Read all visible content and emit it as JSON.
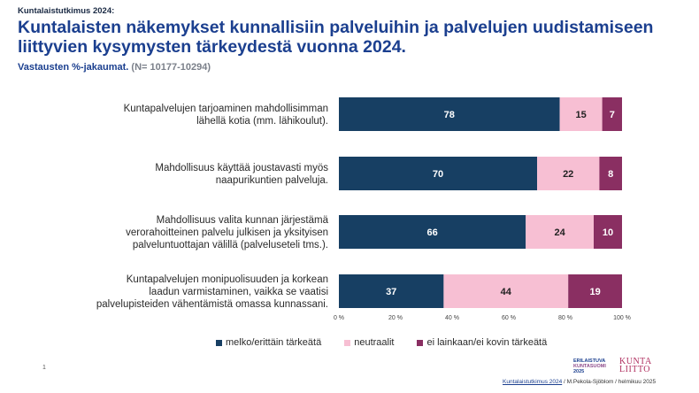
{
  "header": {
    "kicker": "Kuntalaistutkimus 2024:",
    "title": "Kuntalaisten näkemykset kunnallisiin palveluihin ja palvelujen uudistamiseen liittyvien kysymysten tärkeydestä vuonna 2024.",
    "subtitle": "Vastausten %-jakaumat.",
    "subtitle_n": "(N= 10177-10294)"
  },
  "colors": {
    "important": "#173f63",
    "neutral": "#f7bfd3",
    "not_important": "#8a2f62",
    "title": "#1b3f8f"
  },
  "chart_data": {
    "type": "bar",
    "orientation": "horizontal",
    "stacked": true,
    "categories": [
      [
        "Kuntapalvelujen tarjoaminen mahdollisimman",
        "lähellä kotia (mm. lähikoulut)."
      ],
      [
        "Mahdollisuus käyttää joustavasti myös",
        "naapurikuntien palveluja."
      ],
      [
        "Mahdollisuus valita kunnan järjestämä",
        "verorahoitteinen palvelu julkisen ja yksityisen",
        "palveluntuottajan välillä (palveluseteli tms.)."
      ],
      [
        "Kuntapalvelujen monipuolisuuden ja korkean",
        "laadun varmistaminen, vaikka se vaatisi",
        "palvelupisteiden vähentämistä omassa kunnassani."
      ]
    ],
    "series": [
      {
        "name": "melko/erittäin tärkeätä",
        "values": [
          78,
          70,
          66,
          37
        ]
      },
      {
        "name": "neutraalit",
        "values": [
          15,
          22,
          24,
          44
        ]
      },
      {
        "name": "ei lainkaan/ei kovin tärkeätä",
        "values": [
          7,
          8,
          10,
          19
        ]
      }
    ],
    "xlim": [
      0,
      100
    ],
    "xticks": [
      "0 %",
      "20 %",
      "40 %",
      "60 %",
      "80 %",
      "100 %"
    ],
    "legend_position": "bottom",
    "grid": false
  },
  "footer": {
    "page_number": "1",
    "source_link": "Kuntalaistutkimus 2024",
    "source_rest": " / M.Pekola-Sjöblom / helmikuu 2025",
    "logo1_lines": [
      "ERILAISTUVA",
      "KUNTASUOMI",
      "2025"
    ],
    "logo2_lines": [
      "KUNTA",
      "LIITTO"
    ]
  }
}
